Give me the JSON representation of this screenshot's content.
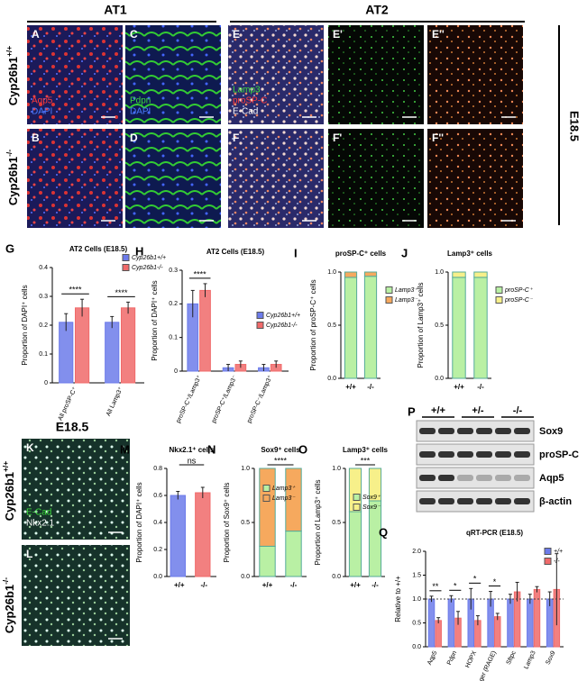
{
  "headers": {
    "at1": "AT1",
    "at2": "AT2",
    "stage": "E18.5"
  },
  "genotypes": [
    {
      "base": "Cyp26b1",
      "sup": "+/+"
    },
    {
      "base": "Cyp26b1",
      "sup": "-/-"
    }
  ],
  "images": [
    {
      "panel": "A",
      "labels": [
        {
          "text": "Aqp5",
          "color": "#ff3b3b"
        },
        {
          "text": "DAPI",
          "color": "#4a7bff"
        }
      ]
    },
    {
      "panel": "C",
      "labels": [
        {
          "text": "Pdpn",
          "color": "#3bdc3b"
        },
        {
          "text": "DAPI",
          "color": "#4a7bff"
        }
      ]
    },
    {
      "panel": "E",
      "labels": [
        {
          "text": "Lamp3",
          "color": "#3bdc3b"
        },
        {
          "text": "proSP-C",
          "color": "#ff3b3b"
        },
        {
          "text": "E-Cad",
          "color": "#ffffff"
        }
      ]
    },
    {
      "panel": "E'",
      "labels": []
    },
    {
      "panel": "E''",
      "labels": []
    },
    {
      "panel": "B",
      "labels": []
    },
    {
      "panel": "D",
      "labels": []
    },
    {
      "panel": "F",
      "labels": []
    },
    {
      "panel": "F'",
      "labels": []
    },
    {
      "panel": "F''",
      "labels": []
    },
    {
      "panel": "K",
      "labels": [
        {
          "text": "E-Cad",
          "color": "#3bdc3b"
        },
        {
          "text": "Nkx2.1",
          "color": "#ffffff"
        }
      ]
    },
    {
      "panel": "L",
      "labels": []
    }
  ],
  "lower_stage": "E18.5",
  "blot": {
    "panel": "P",
    "lanes": [
      "+/+",
      "+/-",
      "-/-"
    ],
    "bands": [
      "Sox9",
      "proSP-C",
      "Aqp5",
      "β-actin"
    ]
  },
  "chart_data": [
    {
      "type": "bar",
      "panel": "G",
      "title": "AT2 Cells (E18.5)",
      "y_label": "Proportion of DAPI⁺ cells",
      "categories": [
        "All proSP-C⁺",
        "All Lamp3⁺"
      ],
      "series": [
        {
          "name": "Cyp26b1+/+",
          "color": "#6c7bea",
          "values": [
            0.21,
            0.21
          ],
          "errors": [
            0.03,
            0.02
          ]
        },
        {
          "name": "Cyp26b1-/-",
          "color": "#f06a6a",
          "values": [
            0.26,
            0.26
          ],
          "errors": [
            0.03,
            0.02
          ]
        }
      ],
      "ylim": [
        0,
        0.4
      ],
      "yticks": [
        0,
        0.1,
        0.2,
        0.3,
        0.4
      ],
      "significance": [
        "****",
        "****"
      ]
    },
    {
      "type": "bar",
      "panel": "H",
      "title": "AT2 Cells (E18.5)",
      "y_label": "Proportion of DAPI⁺ cells",
      "categories": [
        "proSP-C⁺/Lamp3⁺",
        "proSP-C⁺/Lamp3⁻",
        "proSP-C⁻/Lamp3⁺"
      ],
      "series": [
        {
          "name": "Cyp26b1+/+",
          "color": "#6c7bea",
          "values": [
            0.2,
            0.01,
            0.01
          ],
          "errors": [
            0.04,
            0.01,
            0.01
          ]
        },
        {
          "name": "Cyp26b1-/-",
          "color": "#f06a6a",
          "values": [
            0.24,
            0.02,
            0.02
          ],
          "errors": [
            0.02,
            0.01,
            0.01
          ]
        }
      ],
      "ylim": [
        0,
        0.3
      ],
      "yticks": [
        0,
        0.1,
        0.2,
        0.3
      ],
      "significance": [
        "****",
        null,
        null
      ]
    },
    {
      "type": "stacked-bar",
      "panel": "I",
      "title": "proSP-C⁺ cells",
      "y_label": "Proportion of proSP-C⁺ cells",
      "categories": [
        "+/+",
        "-/-"
      ],
      "series": [
        {
          "name": "Lamp3⁺",
          "color": "#b9f0a4",
          "values": [
            0.95,
            0.96
          ]
        },
        {
          "name": "Lamp3⁻",
          "color": "#f6a95e",
          "values": [
            0.05,
            0.04
          ]
        }
      ],
      "ylim": [
        0,
        1
      ],
      "yticks": [
        {
          "value": 0,
          "label": "0.0"
        },
        {
          "value": 0.5,
          "label": "0.5"
        },
        {
          "value": 1,
          "label": "1.0"
        }
      ]
    },
    {
      "type": "stacked-bar",
      "panel": "J",
      "title": "Lamp3⁺ cells",
      "y_label": "Proportion of Lamp3⁺ cells",
      "categories": [
        "+/+",
        "-/-"
      ],
      "series": [
        {
          "name": "proSP-C⁺",
          "color": "#b9f0a4",
          "values": [
            0.95,
            0.95
          ]
        },
        {
          "name": "proSP-C⁻",
          "color": "#f7f08a",
          "values": [
            0.05,
            0.05
          ]
        }
      ],
      "ylim": [
        0,
        1
      ],
      "yticks": [
        {
          "value": 0,
          "label": "0.0"
        },
        {
          "value": 0.5,
          "label": "0.5"
        },
        {
          "value": 1,
          "label": "1.0"
        }
      ]
    },
    {
      "type": "bar",
      "panel": "M",
      "title": "Nkx2.1⁺ cells",
      "y_label": "Proportion of DAPI⁺ cells",
      "categories": [
        "+/+",
        "-/-"
      ],
      "values": [
        0.6,
        0.62
      ],
      "errors": [
        0.03,
        0.04
      ],
      "colors": [
        "#6c7bea",
        "#f06a6a"
      ],
      "ylim": [
        0,
        0.8
      ],
      "yticks": [
        {
          "value": 0,
          "label": "0.0"
        },
        {
          "value": 0.2,
          "label": "0.2"
        },
        {
          "value": 0.4,
          "label": "0.4"
        },
        {
          "value": 0.6,
          "label": "0.6"
        },
        {
          "value": 0.8,
          "label": "0.8"
        }
      ],
      "significance": "ns"
    },
    {
      "type": "stacked-bar",
      "panel": "N",
      "title": "Sox9⁺ cells",
      "y_label": "Proportion of Sox9⁺ cells",
      "categories": [
        "+/+",
        "-/-"
      ],
      "series": [
        {
          "name": "Lamp3⁺",
          "color": "#b9f0a4",
          "values": [
            0.28,
            0.42
          ]
        },
        {
          "name": "Lamp3⁻",
          "color": "#f6a95e",
          "values": [
            0.72,
            0.58
          ]
        }
      ],
      "ylim": [
        0,
        1
      ],
      "yticks": [
        {
          "value": 0,
          "label": "0.0"
        },
        {
          "value": 0.5,
          "label": "0.5"
        },
        {
          "value": 1,
          "label": "1.0"
        }
      ],
      "significance": "****"
    },
    {
      "type": "stacked-bar",
      "panel": "O",
      "title": "Lamp3⁺ cells",
      "y_label": "Proportion of Lamp3⁺ cells",
      "categories": [
        "+/+",
        "-/-"
      ],
      "series": [
        {
          "name": "Sox9⁺",
          "color": "#b9f0a4",
          "values": [
            0.6,
            0.7
          ]
        },
        {
          "name": "Sox9⁻",
          "color": "#f7f08a",
          "values": [
            0.4,
            0.3
          ]
        }
      ],
      "ylim": [
        0,
        1
      ],
      "yticks": [
        {
          "value": 0,
          "label": "0.0"
        },
        {
          "value": 0.5,
          "label": "0.5"
        },
        {
          "value": 1,
          "label": "1.0"
        }
      ],
      "significance": "***"
    },
    {
      "type": "bar",
      "panel": "Q",
      "title": "qRT-PCR  (E18.5)",
      "y_label": "Relative to +/+",
      "categories": [
        "Aqp5",
        "Pdpn",
        "HOPX",
        "Ager (RAGE)",
        "Sftpc",
        "Lamp3",
        "Sox9"
      ],
      "series": [
        {
          "name": "+/+",
          "color": "#6c7bea",
          "values": [
            1,
            1,
            1,
            1,
            1,
            1,
            1
          ],
          "errors": [
            0.06,
            0.07,
            0.22,
            0.16,
            0.1,
            0.1,
            0.15
          ]
        },
        {
          "name": "-/-",
          "color": "#f06a6a",
          "values": [
            0.55,
            0.6,
            0.55,
            0.63,
            1.15,
            1.2,
            1.2
          ],
          "errors": [
            0.06,
            0.14,
            0.1,
            0.07,
            0.2,
            0.06,
            0.75
          ]
        }
      ],
      "ylim": [
        0,
        2
      ],
      "yticks": [
        {
          "value": 0,
          "label": "0.0"
        },
        {
          "value": 0.5,
          "label": "0.5"
        },
        {
          "value": 1,
          "label": "1.0"
        },
        {
          "value": 1.5,
          "label": "1.5"
        },
        {
          "value": 2,
          "label": "2.0"
        }
      ],
      "significance": [
        "**",
        "*",
        "*",
        "*",
        null,
        null,
        null
      ],
      "reference_line": 1
    }
  ]
}
